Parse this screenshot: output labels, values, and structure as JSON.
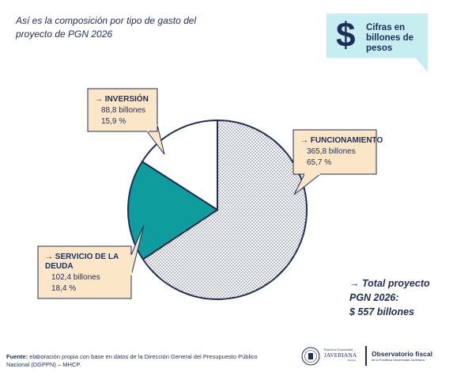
{
  "intro": "Así es la composición por tipo de gasto del proyecto de PGN 2026",
  "badge": {
    "symbol": "$",
    "text": "Cifras en billones de pesos"
  },
  "chart_data": {
    "type": "pie",
    "unit": "billones de pesos",
    "slices": [
      {
        "label": "FUNCIONAMIENTO",
        "value": 365.8,
        "value_text": "365,8 billones",
        "percent": 65.7,
        "percent_text": "65,7 %",
        "fill": "dotted",
        "color": "#ffffff"
      },
      {
        "label": "SERVICIO DE LA DEUDA",
        "value": 102.4,
        "value_text": "102,4 billones",
        "percent": 18.4,
        "percent_text": "18,4 %",
        "fill": "solid",
        "color": "#0f9c9c"
      },
      {
        "label": "INVERSIÓN",
        "value": 88.8,
        "value_text": "88,8 billones",
        "percent": 15.9,
        "percent_text": "15,9 %",
        "fill": "solid",
        "color": "#ffffff"
      }
    ],
    "callout_color": "#fbe6c7",
    "outline_color": "#1f2d5a"
  },
  "total": {
    "line1": "→ Total proyecto",
    "line2": "PGN 2026:",
    "line3": "$ 557 billones"
  },
  "footer": {
    "source_label": "Fuente:",
    "source_text": " elaboración propia con base en datos de la Dirección General del Presupuesto Público Nacional (DGPPN) – MHCP."
  },
  "logos": {
    "javeriana_top": "Pontificia Universidad",
    "javeriana_name": "JAVERIANA",
    "javeriana_city": "Bogotá",
    "observatorio": "Observatorio fiscal",
    "observatorio_sub": "de la Pontificia Universidad Javeriana"
  }
}
